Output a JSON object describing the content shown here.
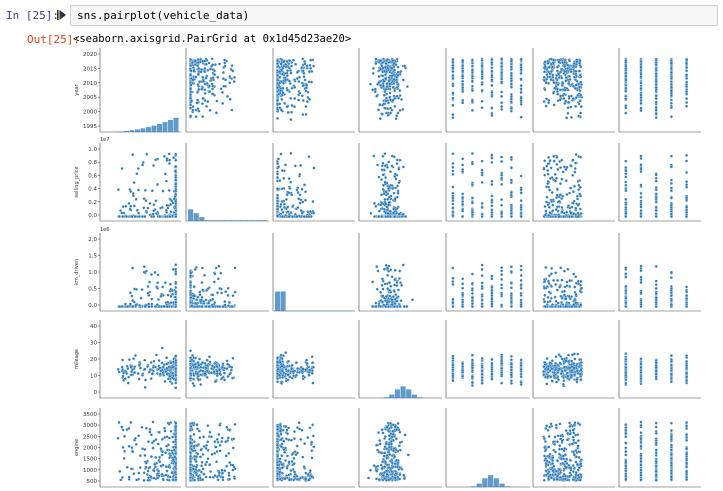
{
  "cell": {
    "in_prompt": "In [25]:",
    "code": "sns.pairplot(vehicle_data)",
    "out_prompt": "Out[25]:",
    "output_repr": "<seaborn.axisgrid.PairGrid at 0x1d45d23ae20>"
  },
  "chart_data": {
    "type": "scatter",
    "kind": "pairplot",
    "variables": [
      "year",
      "selling_price",
      "km_driven",
      "mileage",
      "engine"
    ],
    "color": "#2a7ab9",
    "rows": [
      {
        "name": "year",
        "ticks": [
          "2020",
          "2015",
          "2010",
          "2005",
          "2000",
          "1995"
        ],
        "offset": ""
      },
      {
        "name": "selling_price",
        "ticks": [
          "1.0",
          "0.8",
          "0.6",
          "0.4",
          "0.2",
          "0.0"
        ],
        "offset": "1e7"
      },
      {
        "name": "km_driven",
        "ticks": [
          "2.0",
          "1.5",
          "1.0",
          "0.5",
          "0.0"
        ],
        "offset": "1e6"
      },
      {
        "name": "mileage",
        "ticks": [
          "40",
          "30",
          "20",
          "10",
          "0"
        ],
        "offset": ""
      },
      {
        "name": "engine",
        "ticks": [
          "3500",
          "3000",
          "2500",
          "2000",
          "1500",
          "1000",
          "500"
        ],
        "offset": ""
      }
    ]
  }
}
